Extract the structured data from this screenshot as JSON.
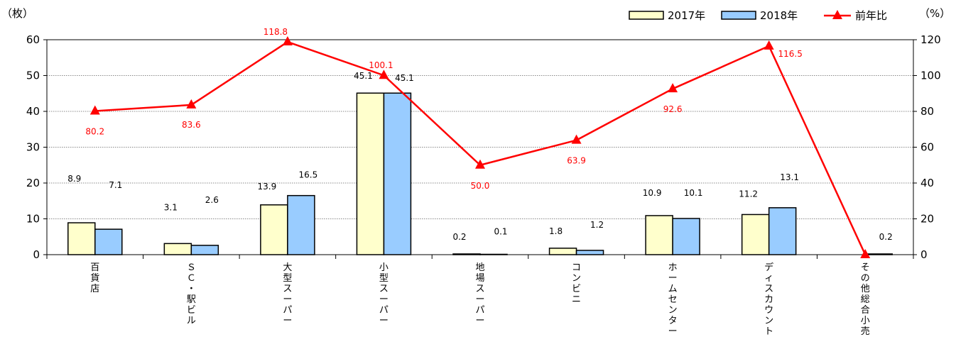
{
  "chart_data": {
    "type": "bar",
    "categories": [
      "百貨店",
      "ＳＣ・駅ビル",
      "大型スーパー",
      "小型スーパー",
      "地場スーパー",
      "コンビニ",
      "ホームセンター",
      "ディスカウント",
      "その他総合小売"
    ],
    "series": [
      {
        "name": "2017年",
        "type": "bar",
        "axis": "left",
        "color": "#ffffcc",
        "values": [
          8.9,
          3.1,
          13.9,
          45.1,
          0.2,
          1.8,
          10.9,
          11.2,
          null
        ],
        "labels": [
          "8.9",
          "3.1",
          "13.9",
          "45.1",
          "0.2",
          "1.8",
          "10.9",
          "11.2",
          ""
        ]
      },
      {
        "name": "2018年",
        "type": "bar",
        "axis": "right-bar",
        "color": "#99ccff",
        "values": [
          7.1,
          2.6,
          16.5,
          45.1,
          0.1,
          1.2,
          10.1,
          13.1,
          0.2
        ],
        "labels": [
          "7.1",
          "2.6",
          "16.5",
          "45.1",
          "0.1",
          "1.2",
          "10.1",
          "13.1",
          "0.2"
        ]
      },
      {
        "name": "前年比",
        "type": "line",
        "axis": "right",
        "color": "#ff0000",
        "marker": "triangle",
        "values": [
          80.2,
          83.6,
          118.8,
          100.1,
          50.0,
          63.9,
          92.6,
          116.5,
          0
        ],
        "labels": [
          "80.2",
          "83.6",
          "118.8",
          "100.1",
          "50.0",
          "63.9",
          "92.6",
          "116.5",
          ""
        ]
      }
    ],
    "y_left": {
      "unit": "（枚）",
      "min": 0,
      "max": 60,
      "ticks": [
        0,
        10,
        20,
        30,
        40,
        50,
        60
      ]
    },
    "y_right": {
      "unit": "（%）",
      "min": 0,
      "max": 120,
      "ticks": [
        0,
        20,
        40,
        60,
        80,
        100,
        120
      ]
    },
    "grid": true,
    "legend_position": "top-right"
  }
}
